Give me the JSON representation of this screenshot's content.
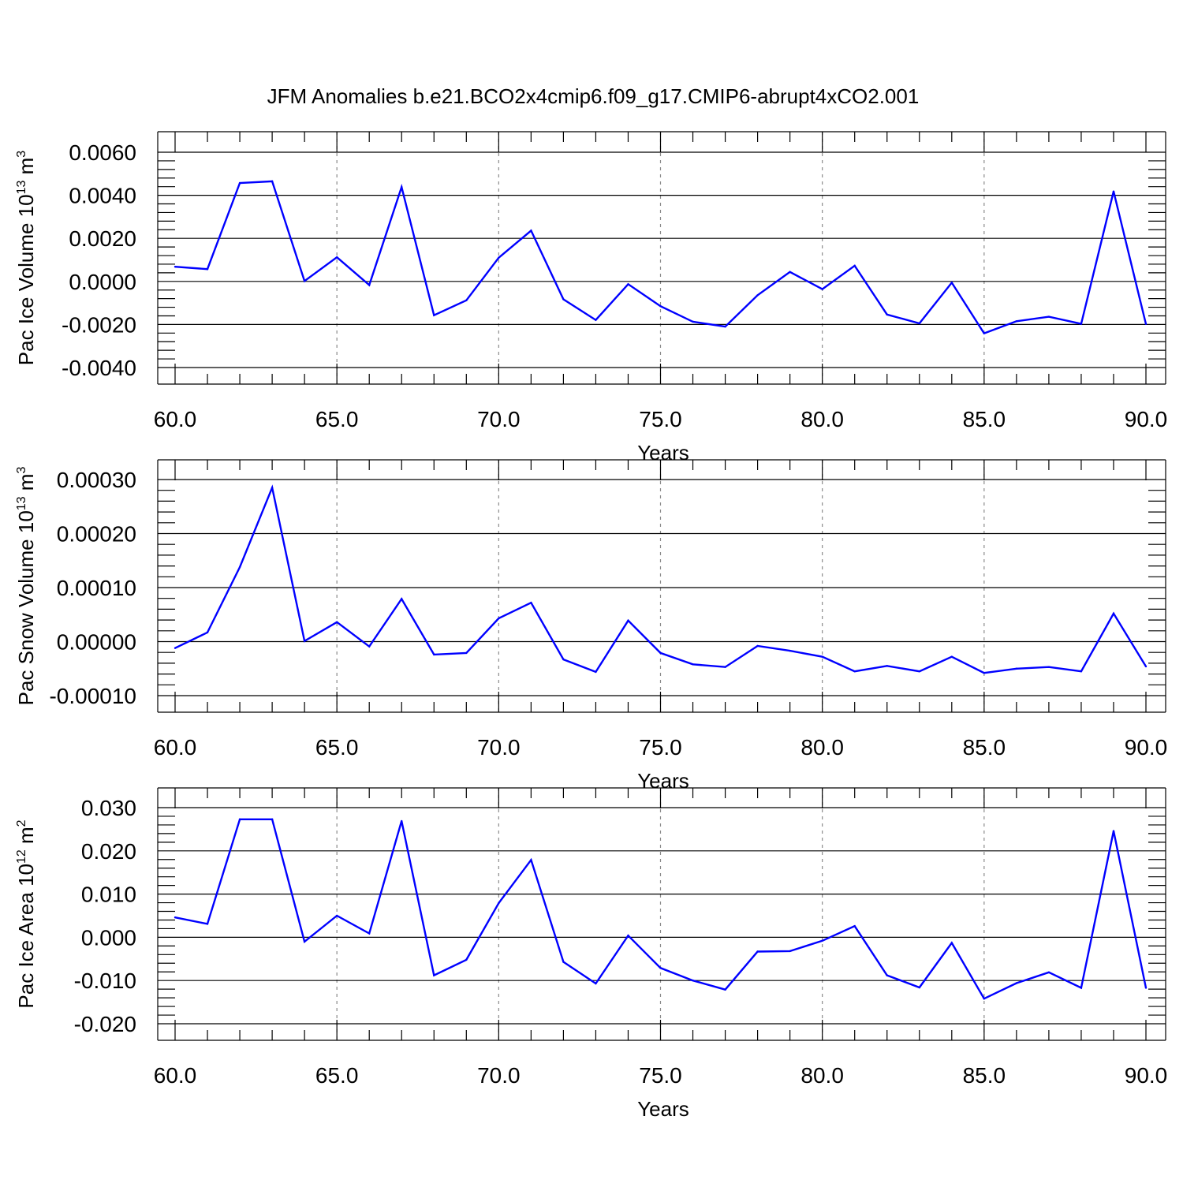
{
  "title": "JFM Anomalies b.e21.BCO2x4cmip6.f09_g17.CMIP6-abrupt4xCO2.001",
  "colors": {
    "series": "#0000ff",
    "grid": "#8a8a8a",
    "axes": "#000000"
  },
  "chart_data": [
    {
      "type": "line",
      "ylabel": {
        "base": "Pac Ice Volume 10",
        "exp": "13",
        "unit": " m",
        "unit_exp": "3"
      },
      "xlabel": "Years",
      "xlim": [
        60,
        90
      ],
      "ylim": [
        -0.004,
        0.006
      ],
      "xticks": [
        60,
        65,
        70,
        75,
        80,
        85,
        90
      ],
      "xtick_labels": [
        "60.0",
        "65.0",
        "70.0",
        "75.0",
        "80.0",
        "85.0",
        "90.0"
      ],
      "yticks": [
        -0.004,
        -0.002,
        0.0,
        0.002,
        0.004,
        0.006
      ],
      "ytick_labels": [
        "-0.0040",
        "-0.0020",
        "0.0000",
        "0.0020",
        "0.0040",
        "0.0060"
      ],
      "grid": "x dashed",
      "x": [
        60,
        61,
        62,
        63,
        64,
        65,
        66,
        67,
        68,
        69,
        70,
        71,
        72,
        73,
        74,
        75,
        76,
        77,
        78,
        79,
        80,
        81,
        82,
        83,
        84,
        85,
        86,
        87,
        88,
        89,
        90
      ],
      "values": [
        0.00068,
        0.00057,
        0.00457,
        0.00465,
        2e-05,
        0.00112,
        -0.00017,
        0.00438,
        -0.00157,
        -0.00088,
        0.0011,
        0.00236,
        -0.00083,
        -0.00179,
        -0.00013,
        -0.00115,
        -0.00187,
        -0.0021,
        -0.00064,
        0.00044,
        -0.00036,
        0.00073,
        -0.00154,
        -0.00195,
        -6e-05,
        -0.00241,
        -0.00185,
        -0.00164,
        -0.00197,
        0.00418,
        -0.00198
      ]
    },
    {
      "type": "line",
      "ylabel": {
        "base": "Pac Snow Volume 10",
        "exp": "13",
        "unit": " m",
        "unit_exp": "3"
      },
      "xlabel": "Years",
      "xlim": [
        60,
        90
      ],
      "ylim": [
        -0.0001,
        0.0003
      ],
      "xticks": [
        60,
        65,
        70,
        75,
        80,
        85,
        90
      ],
      "xtick_labels": [
        "60.0",
        "65.0",
        "70.0",
        "75.0",
        "80.0",
        "85.0",
        "90.0"
      ],
      "yticks": [
        -0.0001,
        0.0,
        0.0001,
        0.0002,
        0.0003
      ],
      "ytick_labels": [
        "-0.00010",
        "0.00000",
        "0.00010",
        "0.00020",
        "0.00030"
      ],
      "grid": "x dashed",
      "x": [
        60,
        61,
        62,
        63,
        64,
        65,
        66,
        67,
        68,
        69,
        70,
        71,
        72,
        73,
        74,
        75,
        76,
        77,
        78,
        79,
        80,
        81,
        82,
        83,
        84,
        85,
        86,
        87,
        88,
        89,
        90
      ],
      "values": [
        -1.2e-05,
        1.7e-05,
        0.000138,
        0.000285,
        1e-06,
        3.6e-05,
        -9e-06,
        7.9e-05,
        -2.4e-05,
        -2.1e-05,
        4.3e-05,
        7.2e-05,
        -3.3e-05,
        -5.6e-05,
        3.9e-05,
        -2.1e-05,
        -4.2e-05,
        -4.7e-05,
        -8e-06,
        -1.7e-05,
        -2.8e-05,
        -5.5e-05,
        -4.5e-05,
        -5.5e-05,
        -2.8e-05,
        -5.8e-05,
        -5e-05,
        -4.7e-05,
        -5.5e-05,
        5.2e-05,
        -4.6e-05
      ]
    },
    {
      "type": "line",
      "ylabel": {
        "base": "Pac Ice Area 10",
        "exp": "12",
        "unit": " m",
        "unit_exp": "2"
      },
      "xlabel": "Years",
      "xlim": [
        60,
        90
      ],
      "ylim": [
        -0.02,
        0.03
      ],
      "xticks": [
        60,
        65,
        70,
        75,
        80,
        85,
        90
      ],
      "xtick_labels": [
        "60.0",
        "65.0",
        "70.0",
        "75.0",
        "80.0",
        "85.0",
        "90.0"
      ],
      "yticks": [
        -0.02,
        -0.01,
        0.0,
        0.01,
        0.02,
        0.03
      ],
      "ytick_labels": [
        "-0.020",
        "-0.010",
        "0.000",
        "0.010",
        "0.020",
        "0.030"
      ],
      "grid": "x dashed",
      "x": [
        60,
        61,
        62,
        63,
        64,
        65,
        66,
        67,
        68,
        69,
        70,
        71,
        72,
        73,
        74,
        75,
        76,
        77,
        78,
        79,
        80,
        81,
        82,
        83,
        84,
        85,
        86,
        87,
        88,
        89,
        90
      ],
      "values": [
        0.0046,
        0.0031,
        0.0273,
        0.0273,
        -0.001,
        0.005,
        0.0009,
        0.0269,
        -0.0088,
        -0.0052,
        0.0079,
        0.0179,
        -0.0057,
        -0.0107,
        0.0004,
        -0.0071,
        -0.01,
        -0.0121,
        -0.0033,
        -0.0032,
        -0.0008,
        0.0026,
        -0.0088,
        -0.0116,
        -0.0013,
        -0.0142,
        -0.0106,
        -0.0081,
        -0.0117,
        0.0246,
        -0.0117
      ]
    }
  ]
}
